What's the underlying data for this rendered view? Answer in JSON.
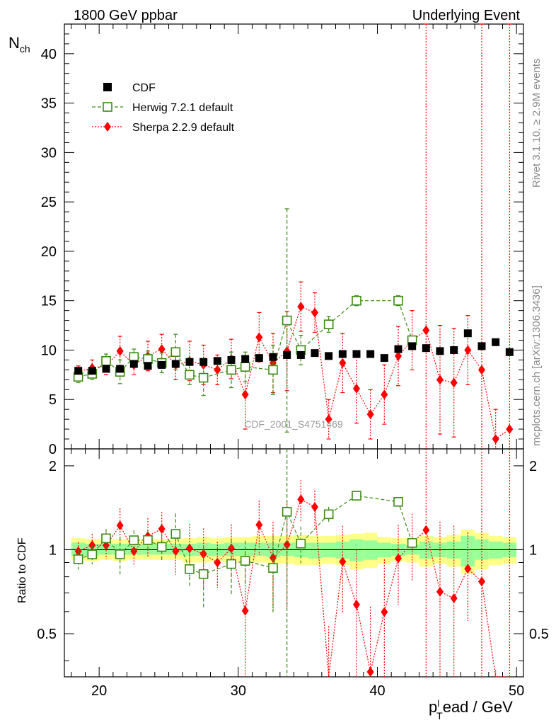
{
  "title_left": "1800 GeV ppbar",
  "title_right": "Underlying Event",
  "ylabel_main": "N",
  "ylabel_main_sub": "ch",
  "ylabel_ratio": "Ratio to CDF",
  "xlabel_p": "p",
  "xlabel_sup": "l",
  "xlabel_sub": "T",
  "xlabel_rest": "ead / GeV",
  "side_text_top": "Rivet 3.1.10, ≥ 2.9M events",
  "side_text_bottom": "mcplots.cern.ch [arXiv:1306.3436]",
  "watermark": "CDF_2001_S4751469",
  "legend": [
    "CDF",
    "Herwig 7.2.1 default",
    "Sherpa 2.2.9 default"
  ],
  "chart_data": {
    "type": "scatter",
    "xlim": [
      17.5,
      50.5
    ],
    "ylim": [
      0,
      43
    ],
    "ratio_ylim": [
      0.35,
      2.3
    ],
    "x_ticks": [
      20,
      30,
      40,
      50
    ],
    "y_ticks": [
      0,
      5,
      10,
      15,
      20,
      25,
      30,
      35,
      40
    ],
    "ratio_ticks": [
      0.5,
      1,
      2
    ],
    "colors": {
      "cdf": "#000000",
      "herwig": "#3a8a12",
      "sherpa": "#ff0000",
      "band_inner": "#99ff99",
      "band_outer": "#ffff88"
    },
    "series": [
      {
        "name": "CDF",
        "x": [
          18.5,
          19.5,
          20.5,
          21.5,
          22.5,
          23.5,
          24.5,
          25.5,
          26.5,
          27.5,
          28.5,
          29.5,
          30.5,
          31.5,
          32.5,
          33.5,
          34.5,
          35.5,
          36.5,
          37.5,
          38.5,
          39.5,
          40.5,
          41.5,
          42.5,
          43.5,
          44.5,
          45.5,
          46.5,
          47.5,
          48.5,
          49.5
        ],
        "y": [
          7.9,
          7.9,
          8.1,
          8.1,
          8.6,
          8.4,
          8.5,
          8.6,
          8.8,
          8.8,
          8.9,
          9.0,
          9.1,
          9.2,
          9.3,
          9.5,
          9.5,
          9.7,
          9.4,
          9.6,
          9.6,
          9.6,
          9.2,
          10.1,
          10.4,
          10.2,
          9.9,
          10.0,
          11.7,
          10.4,
          10.8,
          9.8
        ]
      },
      {
        "name": "Herwig 7.2.1 default",
        "x": [
          18.5,
          19.5,
          20.5,
          21.5,
          22.5,
          23.5,
          24.5,
          25.5,
          26.5,
          27.5,
          29.5,
          30.5,
          32.5,
          33.5,
          34.5,
          36.5,
          38.5,
          41.5,
          42.5
        ],
        "y": [
          7.3,
          7.6,
          8.9,
          7.8,
          9.3,
          9.1,
          8.7,
          9.8,
          7.5,
          7.2,
          8.0,
          8.3,
          8.0,
          13.0,
          10.0,
          12.6,
          15.0,
          15.0,
          11.0
        ],
        "err": [
          0.6,
          0.6,
          0.7,
          1.2,
          0.8,
          0.8,
          1.0,
          1.8,
          1.0,
          1.8,
          1.8,
          1.5,
          2.5,
          11.3,
          1.5,
          0.8,
          0.5,
          0.5,
          0.4
        ]
      },
      {
        "name": "Sherpa 2.2.9 default",
        "x": [
          18.5,
          19.5,
          20.5,
          21.5,
          22.5,
          23.5,
          24.5,
          25.5,
          26.5,
          27.5,
          28.5,
          29.5,
          30.5,
          31.5,
          32.5,
          33.5,
          34.5,
          35.5,
          36.5,
          37.5,
          38.5,
          39.5,
          40.5,
          41.5,
          42.5,
          43.5,
          44.5,
          45.5,
          46.5,
          47.5,
          48.5,
          49.5
        ],
        "y": [
          7.8,
          8.2,
          8.4,
          9.9,
          8.5,
          9.4,
          10.1,
          8.5,
          8.9,
          8.5,
          8.0,
          9.1,
          5.5,
          11.3,
          8.7,
          9.9,
          14.4,
          13.8,
          3.0,
          8.7,
          6.1,
          3.5,
          5.5,
          9.4,
          11.0,
          12.0,
          7.0,
          6.7,
          10.0,
          8.0,
          1.0,
          2.0
        ],
        "err": [
          0.6,
          0.8,
          0.9,
          1.5,
          1.0,
          1.5,
          1.5,
          1.5,
          2.0,
          2.0,
          1.5,
          2.0,
          3.5,
          2.5,
          3.0,
          4.0,
          2.5,
          2.0,
          2.0,
          3.0,
          3.5,
          2.5,
          3.0,
          3.0,
          3.0,
          100,
          5.5,
          5.5,
          3.5,
          100,
          3.0,
          100
        ]
      }
    ],
    "ratio_band": [
      {
        "x": [
          18,
          19
        ],
        "inner": [
          0.95,
          1.06
        ],
        "outer": [
          0.92,
          1.1
        ]
      },
      {
        "x": [
          19,
          20
        ],
        "inner": [
          0.95,
          1.05
        ],
        "outer": [
          0.91,
          1.09
        ]
      },
      {
        "x": [
          20,
          21
        ],
        "inner": [
          0.96,
          1.05
        ],
        "outer": [
          0.92,
          1.09
        ]
      },
      {
        "x": [
          21,
          22
        ],
        "inner": [
          0.96,
          1.05
        ],
        "outer": [
          0.91,
          1.09
        ]
      },
      {
        "x": [
          22,
          23
        ],
        "inner": [
          0.96,
          1.05
        ],
        "outer": [
          0.92,
          1.09
        ]
      },
      {
        "x": [
          23,
          24
        ],
        "inner": [
          0.96,
          1.05
        ],
        "outer": [
          0.92,
          1.09
        ]
      },
      {
        "x": [
          24,
          25
        ],
        "inner": [
          0.96,
          1.05
        ],
        "outer": [
          0.92,
          1.09
        ]
      },
      {
        "x": [
          25,
          26
        ],
        "inner": [
          0.96,
          1.05
        ],
        "outer": [
          0.92,
          1.09
        ]
      },
      {
        "x": [
          26,
          27
        ],
        "inner": [
          0.95,
          1.05
        ],
        "outer": [
          0.9,
          1.1
        ]
      },
      {
        "x": [
          27,
          28
        ],
        "inner": [
          0.95,
          1.06
        ],
        "outer": [
          0.9,
          1.11
        ]
      },
      {
        "x": [
          28,
          29
        ],
        "inner": [
          0.95,
          1.05
        ],
        "outer": [
          0.91,
          1.1
        ]
      },
      {
        "x": [
          29,
          30
        ],
        "inner": [
          0.95,
          1.06
        ],
        "outer": [
          0.9,
          1.11
        ]
      },
      {
        "x": [
          30,
          31
        ],
        "inner": [
          0.95,
          1.06
        ],
        "outer": [
          0.91,
          1.11
        ]
      },
      {
        "x": [
          31,
          32
        ],
        "inner": [
          0.95,
          1.06
        ],
        "outer": [
          0.9,
          1.12
        ]
      },
      {
        "x": [
          32,
          33
        ],
        "inner": [
          0.94,
          1.06
        ],
        "outer": [
          0.89,
          1.12
        ]
      },
      {
        "x": [
          33,
          34
        ],
        "inner": [
          0.95,
          1.06
        ],
        "outer": [
          0.89,
          1.12
        ]
      },
      {
        "x": [
          34,
          35
        ],
        "inner": [
          0.94,
          1.06
        ],
        "outer": [
          0.88,
          1.13
        ]
      },
      {
        "x": [
          35,
          36
        ],
        "inner": [
          0.93,
          1.06
        ],
        "outer": [
          0.88,
          1.12
        ]
      },
      {
        "x": [
          36,
          37
        ],
        "inner": [
          0.94,
          1.06
        ],
        "outer": [
          0.89,
          1.12
        ]
      },
      {
        "x": [
          37,
          38
        ],
        "inner": [
          0.93,
          1.07
        ],
        "outer": [
          0.88,
          1.13
        ]
      },
      {
        "x": [
          38,
          39
        ],
        "inner": [
          0.91,
          1.09
        ],
        "outer": [
          0.85,
          1.14
        ]
      },
      {
        "x": [
          39,
          40
        ],
        "inner": [
          0.92,
          1.08
        ],
        "outer": [
          0.86,
          1.15
        ]
      },
      {
        "x": [
          40,
          41
        ],
        "inner": [
          0.94,
          1.06
        ],
        "outer": [
          0.89,
          1.11
        ]
      },
      {
        "x": [
          41,
          42
        ],
        "inner": [
          0.95,
          1.05
        ],
        "outer": [
          0.91,
          1.1
        ]
      },
      {
        "x": [
          42,
          43
        ],
        "inner": [
          0.96,
          1.04
        ],
        "outer": [
          0.9,
          1.1
        ]
      },
      {
        "x": [
          43,
          44
        ],
        "inner": [
          0.93,
          1.07
        ],
        "outer": [
          0.87,
          1.12
        ]
      },
      {
        "x": [
          44,
          45
        ],
        "inner": [
          0.94,
          1.06
        ],
        "outer": [
          0.89,
          1.11
        ]
      },
      {
        "x": [
          45,
          46
        ],
        "inner": [
          0.93,
          1.07
        ],
        "outer": [
          0.87,
          1.13
        ]
      },
      {
        "x": [
          46,
          47
        ],
        "inner": [
          0.87,
          1.12
        ],
        "outer": [
          0.82,
          1.18
        ]
      },
      {
        "x": [
          47,
          48
        ],
        "inner": [
          0.92,
          1.09
        ],
        "outer": [
          0.85,
          1.15
        ]
      },
      {
        "x": [
          48,
          49
        ],
        "inner": [
          0.93,
          1.07
        ],
        "outer": [
          0.88,
          1.12
        ]
      },
      {
        "x": [
          49,
          50
        ],
        "inner": [
          0.94,
          1.06
        ],
        "outer": [
          0.89,
          1.11
        ]
      }
    ]
  }
}
